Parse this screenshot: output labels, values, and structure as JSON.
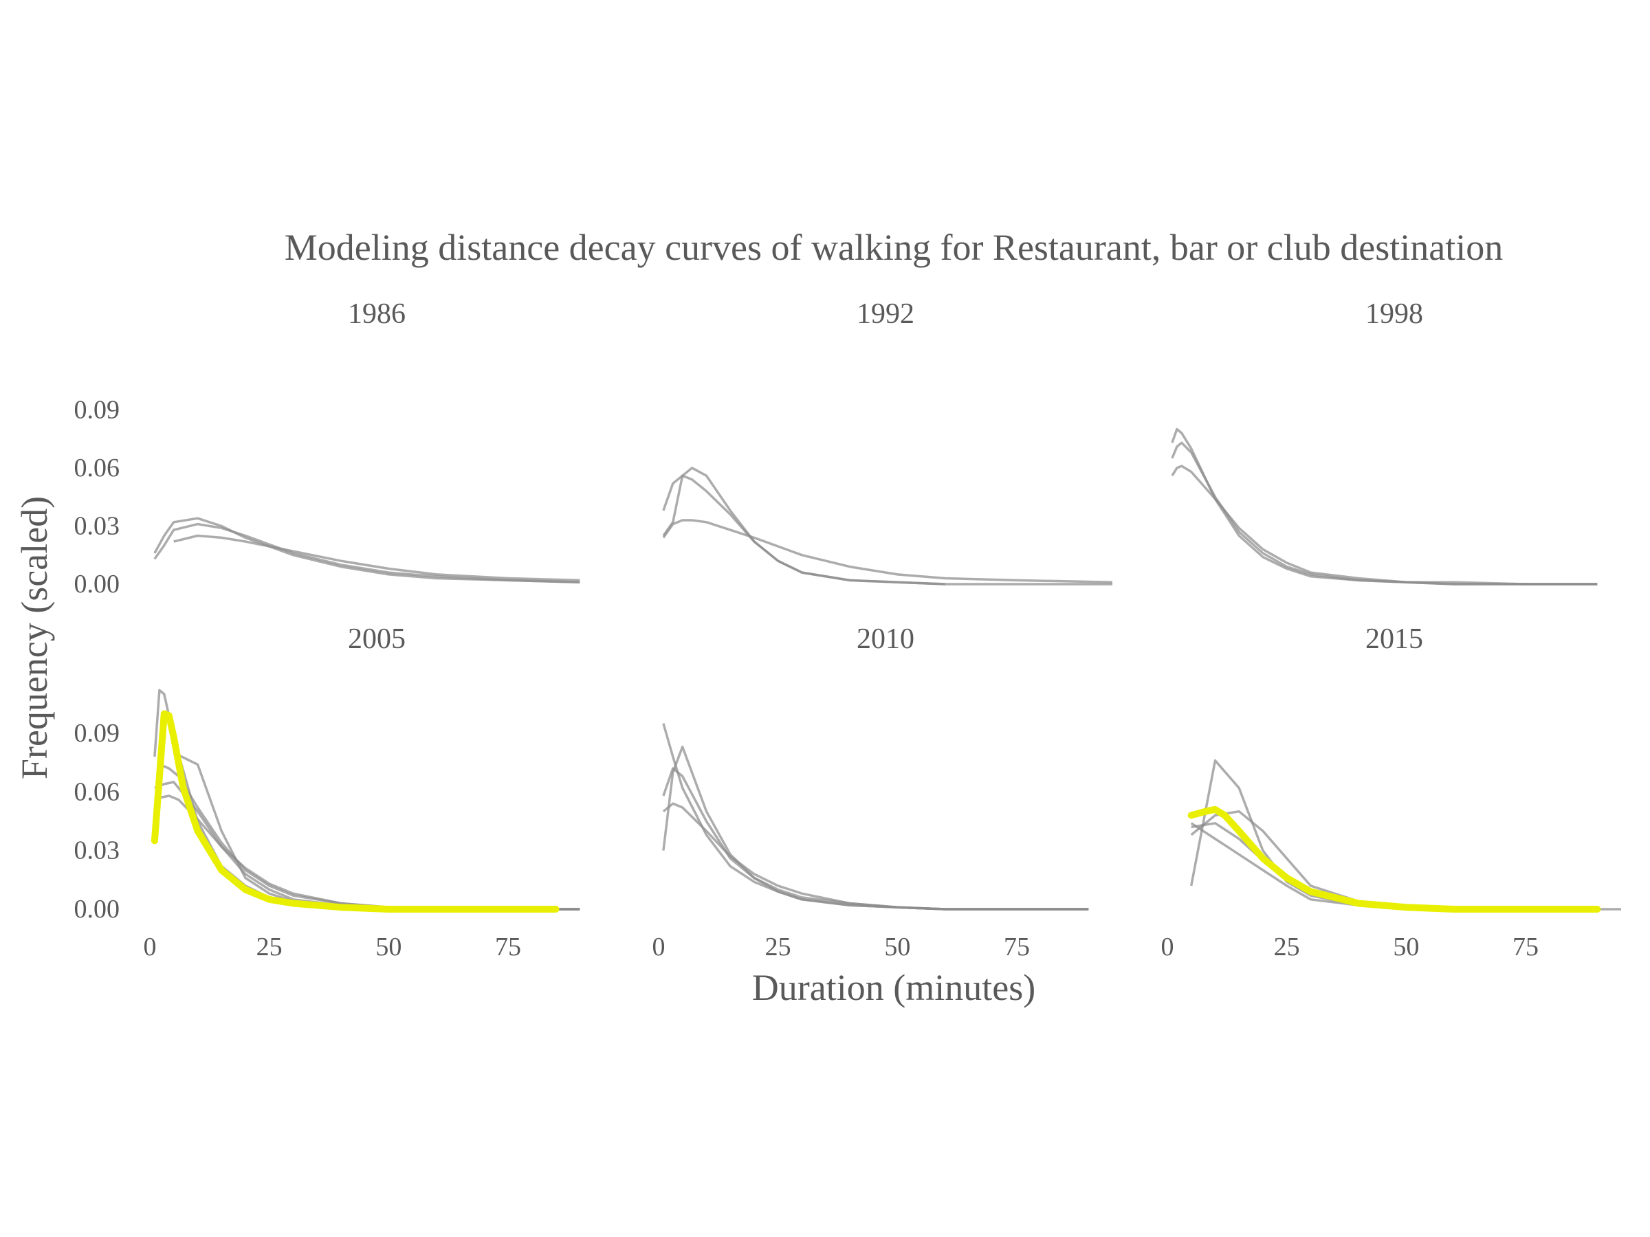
{
  "chart_data": {
    "type": "line",
    "title": "Modeling distance decay curves of walking for Restaurant, bar or club destination",
    "xlabel": "Duration (minutes)",
    "ylabel": "Frequency (scaled)",
    "xlim": [
      0,
      95
    ],
    "ylim": [
      0,
      0.11
    ],
    "x_ticks": [
      "0",
      "25",
      "50",
      "75"
    ],
    "x_tick_values": [
      0,
      25,
      50,
      75
    ],
    "y_ticks": [
      "0.00",
      "0.03",
      "0.06",
      "0.09"
    ],
    "y_tick_values": [
      0,
      0.03,
      0.06,
      0.09
    ],
    "colors": {
      "curve": "#8c8c8c",
      "highlight": "#e8ef00",
      "text": "#595959"
    },
    "panels": [
      {
        "label": "1986",
        "series": [
          {
            "highlight": false,
            "x": [
              1,
              3,
              5,
              10,
              15,
              20,
              30,
              40,
              50,
              60,
              75,
              90
            ],
            "y": [
              0.013,
              0.02,
              0.028,
              0.031,
              0.029,
              0.025,
              0.016,
              0.01,
              0.006,
              0.004,
              0.002,
              0.001
            ]
          },
          {
            "highlight": false,
            "x": [
              1,
              3,
              5,
              10,
              15,
              20,
              30,
              40,
              50,
              60,
              75,
              90
            ],
            "y": [
              0.016,
              0.025,
              0.032,
              0.034,
              0.03,
              0.024,
              0.015,
              0.009,
              0.005,
              0.003,
              0.002,
              0.001
            ]
          },
          {
            "highlight": false,
            "x": [
              5,
              10,
              15,
              20,
              30,
              40,
              50,
              60,
              75,
              90
            ],
            "y": [
              0.022,
              0.025,
              0.024,
              0.022,
              0.017,
              0.012,
              0.008,
              0.005,
              0.003,
              0.002
            ]
          }
        ]
      },
      {
        "label": "1992",
        "series": [
          {
            "highlight": false,
            "x": [
              1,
              3,
              5,
              7,
              10,
              15,
              20,
              25,
              30,
              40,
              50,
              60,
              75,
              95
            ],
            "y": [
              0.038,
              0.052,
              0.056,
              0.054,
              0.048,
              0.036,
              0.022,
              0.012,
              0.006,
              0.002,
              0.001,
              0,
              0,
              0
            ]
          },
          {
            "highlight": false,
            "x": [
              1,
              3,
              5,
              7,
              10,
              15,
              20,
              25,
              30,
              40,
              50,
              60
            ],
            "y": [
              0.025,
              0.032,
              0.056,
              0.06,
              0.056,
              0.038,
              0.022,
              0.012,
              0.006,
              0.002,
              0.001,
              0
            ]
          },
          {
            "highlight": false,
            "x": [
              1,
              3,
              5,
              7,
              10,
              15,
              20,
              30,
              40,
              50,
              60,
              75,
              95
            ],
            "y": [
              0.024,
              0.031,
              0.033,
              0.033,
              0.032,
              0.028,
              0.024,
              0.015,
              0.009,
              0.005,
              0.003,
              0.002,
              0.001
            ]
          }
        ]
      },
      {
        "label": "1998",
        "series": [
          {
            "highlight": false,
            "x": [
              1,
              2,
              3,
              5,
              10,
              15,
              20,
              25,
              30,
              40,
              50,
              60,
              75,
              90
            ],
            "y": [
              0.073,
              0.08,
              0.078,
              0.07,
              0.044,
              0.025,
              0.014,
              0.008,
              0.004,
              0.002,
              0.001,
              0,
              0,
              0
            ]
          },
          {
            "highlight": false,
            "x": [
              1,
              2,
              3,
              5,
              10,
              15,
              20,
              25,
              30,
              40,
              50,
              60,
              75,
              90
            ],
            "y": [
              0.065,
              0.071,
              0.073,
              0.068,
              0.045,
              0.027,
              0.016,
              0.009,
              0.005,
              0.002,
              0.001,
              0,
              0,
              0
            ]
          },
          {
            "highlight": false,
            "x": [
              1,
              2,
              3,
              5,
              10,
              15,
              20,
              25,
              30,
              40,
              50,
              60,
              75,
              90
            ],
            "y": [
              0.056,
              0.06,
              0.061,
              0.058,
              0.044,
              0.029,
              0.018,
              0.011,
              0.006,
              0.003,
              0.001,
              0.001,
              0,
              0
            ]
          }
        ]
      },
      {
        "label": "2005",
        "series": [
          {
            "highlight": false,
            "x": [
              1,
              2,
              3,
              5,
              10,
              15,
              20,
              25,
              30,
              40,
              50,
              60,
              75,
              90
            ],
            "y": [
              0.078,
              0.112,
              0.11,
              0.088,
              0.045,
              0.022,
              0.012,
              0.006,
              0.003,
              0.001,
              0,
              0,
              0,
              0
            ]
          },
          {
            "highlight": false,
            "x": [
              1,
              3,
              5,
              10,
              15,
              20,
              25,
              30,
              40,
              50,
              60,
              75,
              90
            ],
            "y": [
              0.062,
              0.064,
              0.065,
              0.05,
              0.032,
              0.018,
              0.01,
              0.005,
              0.002,
              0.001,
              0,
              0,
              0
            ]
          },
          {
            "highlight": false,
            "x": [
              2,
              4,
              6,
              10,
              15,
              20,
              25,
              30,
              40,
              50,
              60,
              75,
              90
            ],
            "y": [
              0.074,
              0.072,
              0.068,
              0.052,
              0.034,
              0.02,
              0.012,
              0.007,
              0.003,
              0.001,
              0,
              0,
              0
            ]
          },
          {
            "highlight": false,
            "x": [
              2,
              4,
              6,
              10,
              15,
              20,
              25,
              30,
              40,
              50,
              60,
              75,
              90
            ],
            "y": [
              0.057,
              0.058,
              0.056,
              0.046,
              0.032,
              0.021,
              0.013,
              0.008,
              0.003,
              0.001,
              0,
              0,
              0
            ]
          },
          {
            "highlight": false,
            "x": [
              5,
              10,
              15,
              20,
              25,
              30,
              40,
              50,
              60,
              75,
              90
            ],
            "y": [
              0.08,
              0.074,
              0.04,
              0.016,
              0.008,
              0.004,
              0.001,
              0,
              0,
              0,
              0
            ]
          },
          {
            "highlight": true,
            "x": [
              1,
              3,
              4,
              5,
              7,
              10,
              15,
              20,
              25,
              30,
              40,
              50,
              60,
              75,
              85
            ],
            "y": [
              0.035,
              0.1,
              0.099,
              0.088,
              0.062,
              0.04,
              0.02,
              0.01,
              0.005,
              0.003,
              0.001,
              0,
              0,
              0,
              0
            ]
          }
        ]
      },
      {
        "label": "2010",
        "series": [
          {
            "highlight": false,
            "x": [
              1,
              3,
              5,
              10,
              15,
              20,
              25,
              30,
              40,
              50,
              60,
              75,
              90
            ],
            "y": [
              0.095,
              0.078,
              0.062,
              0.038,
              0.022,
              0.014,
              0.009,
              0.005,
              0.002,
              0.001,
              0,
              0,
              0
            ]
          },
          {
            "highlight": false,
            "x": [
              1,
              3,
              5,
              10,
              15,
              20,
              25,
              30,
              40,
              50,
              60,
              75,
              90
            ],
            "y": [
              0.03,
              0.07,
              0.083,
              0.05,
              0.028,
              0.016,
              0.009,
              0.005,
              0.002,
              0.001,
              0,
              0,
              0
            ]
          },
          {
            "highlight": false,
            "x": [
              1,
              3,
              5,
              10,
              15,
              20,
              25,
              30,
              40,
              50,
              60,
              75,
              90
            ],
            "y": [
              0.058,
              0.072,
              0.068,
              0.045,
              0.026,
              0.016,
              0.01,
              0.006,
              0.003,
              0.001,
              0,
              0,
              0
            ]
          },
          {
            "highlight": false,
            "x": [
              1,
              3,
              5,
              10,
              15,
              20,
              25,
              30,
              40,
              50,
              60,
              75,
              90
            ],
            "y": [
              0.05,
              0.054,
              0.052,
              0.04,
              0.027,
              0.018,
              0.012,
              0.008,
              0.003,
              0.001,
              0,
              0,
              0
            ]
          }
        ]
      },
      {
        "label": "2015",
        "series": [
          {
            "highlight": false,
            "x": [
              5,
              10,
              15,
              20,
              30,
              40,
              50,
              60,
              75,
              95
            ],
            "y": [
              0.038,
              0.048,
              0.05,
              0.04,
              0.012,
              0.004,
              0.001,
              0,
              0,
              0
            ]
          },
          {
            "highlight": false,
            "x": [
              5,
              10,
              15,
              20,
              25,
              30,
              40,
              50,
              60,
              75,
              90
            ],
            "y": [
              0.012,
              0.076,
              0.062,
              0.03,
              0.014,
              0.007,
              0.002,
              0.001,
              0,
              0,
              0
            ]
          },
          {
            "highlight": false,
            "x": [
              5,
              10,
              15,
              20,
              25,
              30,
              40,
              50,
              60,
              75,
              90
            ],
            "y": [
              0.044,
              0.036,
              0.028,
              0.02,
              0.012,
              0.005,
              0.002,
              0,
              0,
              0,
              0
            ]
          },
          {
            "highlight": false,
            "x": [
              5,
              10,
              15,
              20,
              25,
              30,
              40,
              50,
              60,
              75,
              90
            ],
            "y": [
              0.042,
              0.044,
              0.036,
              0.025,
              0.015,
              0.009,
              0.004,
              0.001,
              0,
              0,
              0
            ]
          },
          {
            "highlight": true,
            "x": [
              5,
              8,
              10,
              12,
              15,
              20,
              25,
              30,
              40,
              50,
              60,
              75,
              90
            ],
            "y": [
              0.048,
              0.05,
              0.051,
              0.048,
              0.04,
              0.026,
              0.016,
              0.009,
              0.003,
              0.001,
              0,
              0,
              0
            ]
          }
        ]
      }
    ]
  }
}
